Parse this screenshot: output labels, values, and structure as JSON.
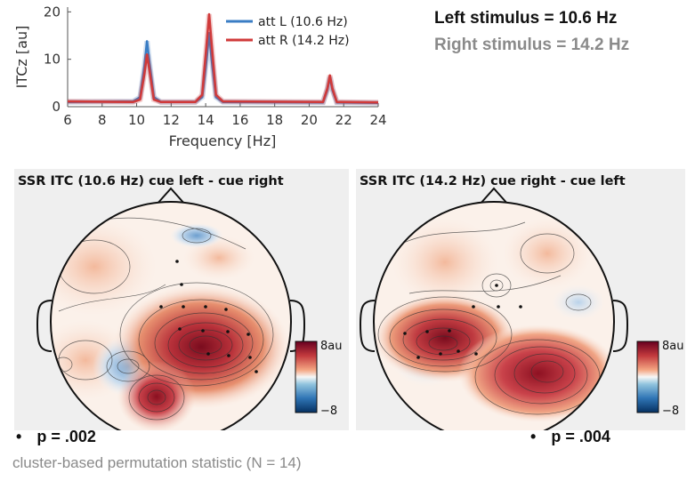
{
  "chart_data": [
    {
      "type": "line",
      "title": "",
      "xlabel": "Frequency [Hz]",
      "ylabel": "ITCz [au]",
      "xlim": [
        6,
        24
      ],
      "ylim": [
        0,
        21
      ],
      "xticks": [
        "6",
        "8",
        "10",
        "12",
        "14",
        "16",
        "18",
        "20",
        "22",
        "24"
      ],
      "yticks": [
        "0",
        "10",
        "20"
      ],
      "legend_position": "top-right",
      "series": [
        {
          "name": "att L (10.6 Hz)",
          "color": "#3a7dc4",
          "x": [
            6,
            9.8,
            10.2,
            10.45,
            10.6,
            10.75,
            11.0,
            11.4,
            13.4,
            13.8,
            14.05,
            14.2,
            14.35,
            14.6,
            15.0,
            20.8,
            21.05,
            21.2,
            21.35,
            21.6,
            24
          ],
          "y": [
            1.0,
            1.1,
            2.0,
            8.5,
            13.8,
            9.0,
            2.0,
            1.0,
            1.0,
            2.0,
            10.0,
            15.5,
            10.0,
            2.0,
            1.0,
            0.9,
            3.5,
            6.2,
            3.5,
            0.9,
            0.8
          ]
        },
        {
          "name": "att R (14.2 Hz)",
          "color": "#d03a3a",
          "x": [
            6,
            9.8,
            10.2,
            10.45,
            10.6,
            10.75,
            11.0,
            11.4,
            13.4,
            13.8,
            14.05,
            14.2,
            14.35,
            14.6,
            15.0,
            20.8,
            21.05,
            21.2,
            21.35,
            21.6,
            24
          ],
          "y": [
            1.1,
            1.0,
            1.5,
            7.0,
            11.0,
            7.5,
            1.5,
            1.0,
            1.0,
            2.5,
            13.0,
            19.5,
            13.0,
            2.5,
            1.1,
            1.0,
            3.8,
            6.6,
            3.8,
            1.0,
            0.9
          ]
        }
      ]
    },
    {
      "type": "heatmap",
      "title": "SSR ITC (10.6 Hz) cue left - cue right",
      "colorbar": {
        "max_label": "8au",
        "min_label": "−8"
      },
      "p_value": "p = .002"
    },
    {
      "type": "heatmap",
      "title": "SSR ITC (14.2 Hz) cue right - cue left",
      "colorbar": {
        "max_label": "8au",
        "min_label": "−8"
      },
      "p_value": "p = .004"
    }
  ],
  "info": {
    "left_stimulus": "Left stimulus = 10.6 Hz",
    "right_stimulus": "Right stimulus = 14.2 Hz"
  },
  "footnote": "cluster-based permutation statistic (N = 14)",
  "bullet": "•"
}
